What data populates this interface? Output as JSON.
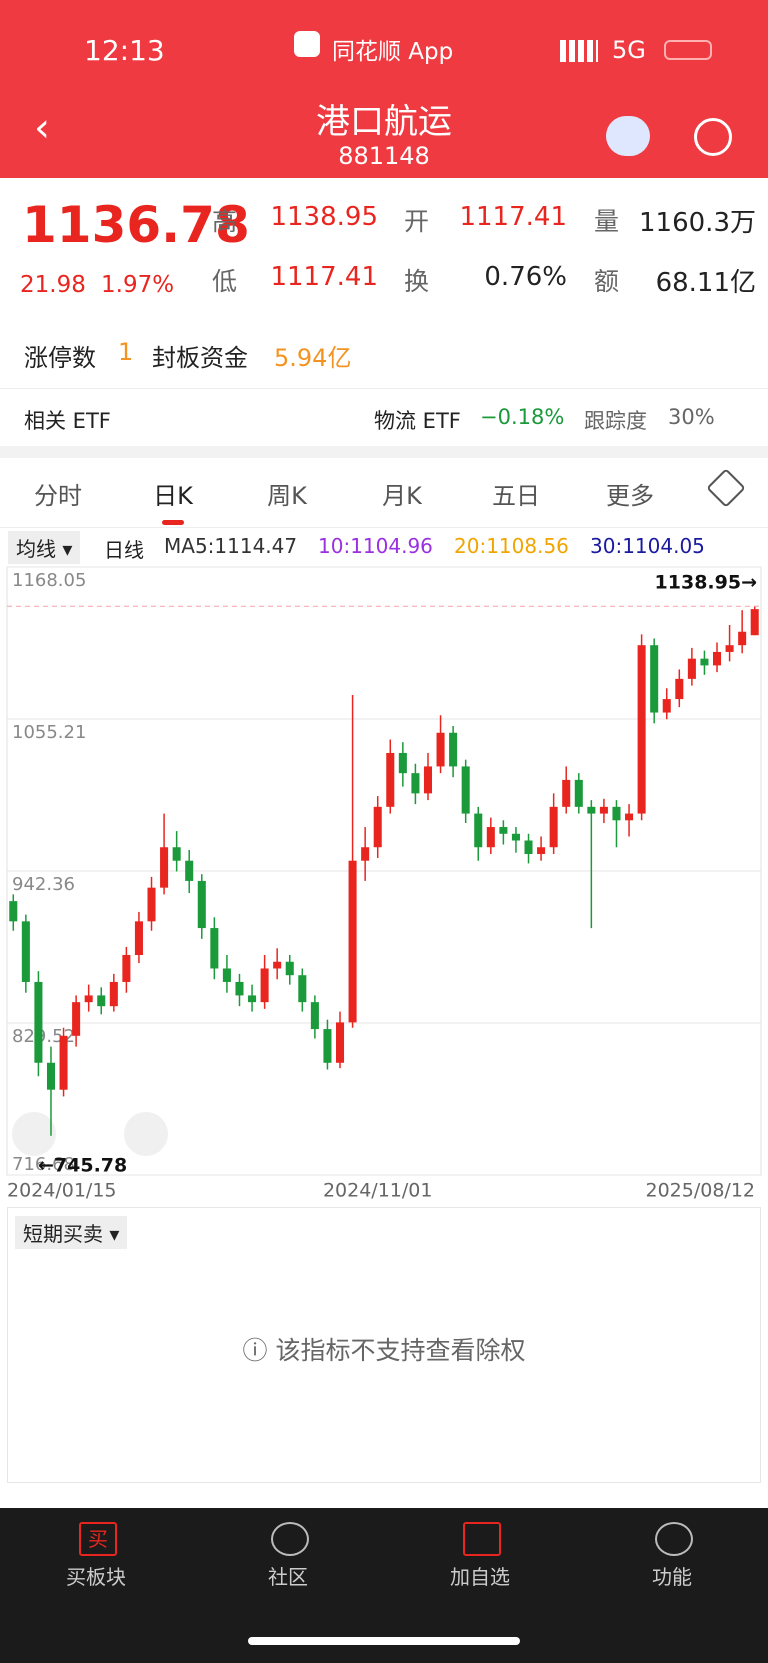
{
  "status_bar": {
    "time": "12:13",
    "app": "同花顺 App",
    "network": "5G"
  },
  "header": {
    "title": "港口航运",
    "code": "881148"
  },
  "quote": {
    "price": "1136.78",
    "change": "21.98",
    "change_pct": "1.97%",
    "fields": [
      {
        "label": "高",
        "value": "1138.95"
      },
      {
        "label": "开",
        "value": "1117.41"
      },
      {
        "label": "量",
        "value": "1160.3万"
      },
      {
        "label": "低",
        "value": "1117.41"
      },
      {
        "label": "换",
        "value": "0.76%"
      },
      {
        "label": "额",
        "value": "68.11亿"
      }
    ]
  },
  "limit": {
    "label": "涨停数",
    "count": "1",
    "fund_label": "封板资金",
    "fund": "5.94亿"
  },
  "etf": {
    "label": "相关 ETF",
    "name": "物流 ETF",
    "change": "−0.18%",
    "track_label": "跟踪度",
    "track": "30%"
  },
  "tabs": [
    "分时",
    "日K",
    "周K",
    "月K",
    "五日",
    "更多"
  ],
  "ma_legend": {
    "selector": "均线",
    "type": "日线",
    "items": [
      {
        "text": "MA5:1114.47",
        "color": "#333333"
      },
      {
        "text": "10:1104.96",
        "color": "#9b30e0"
      },
      {
        "text": "20:1108.56",
        "color": "#f0a500"
      },
      {
        "text": "30:1104.05",
        "color": "#1a1aa0"
      }
    ]
  },
  "chart_data": {
    "type": "candlestick",
    "categories": [
      "2024/01/15",
      null,
      null,
      null,
      null,
      null,
      null,
      null,
      null,
      null,
      null,
      null,
      null,
      null,
      null,
      null,
      null,
      null,
      null,
      null,
      null,
      null,
      null,
      null,
      null,
      null,
      null,
      null,
      null,
      "2024/11/01",
      null,
      null,
      null,
      null,
      null,
      null,
      null,
      null,
      null,
      null,
      null,
      null,
      null,
      null,
      null,
      null,
      null,
      null,
      null,
      null,
      null,
      null,
      null,
      null,
      null,
      null,
      null,
      null,
      null,
      "2025/08/12"
    ],
    "open": [
      920,
      905,
      860,
      800,
      780,
      820,
      845,
      850,
      842,
      860,
      880,
      905,
      930,
      960,
      950,
      935,
      900,
      870,
      860,
      850,
      845,
      870,
      875,
      865,
      845,
      825,
      800,
      830,
      950,
      960,
      990,
      1030,
      1015,
      1000,
      1020,
      1045,
      1020,
      985,
      960,
      975,
      970,
      965,
      955,
      960,
      990,
      1010,
      990,
      985,
      990,
      980,
      985,
      1110,
      1060,
      1070,
      1085,
      1100,
      1095,
      1105,
      1110,
      1117.41
    ],
    "high": [
      925,
      910,
      868,
      812,
      826,
      850,
      858,
      856,
      866,
      886,
      912,
      938,
      985,
      972,
      958,
      940,
      908,
      880,
      866,
      858,
      880,
      885,
      880,
      870,
      850,
      832,
      838,
      1073,
      975,
      998,
      1040,
      1038,
      1022,
      1030,
      1058,
      1050,
      1025,
      990,
      982,
      980,
      975,
      970,
      968,
      1000,
      1020,
      1015,
      995,
      996,
      995,
      992,
      1118,
      1115,
      1078,
      1092,
      1108,
      1106,
      1112,
      1125,
      1136,
      1138.95
    ],
    "low": [
      898,
      852,
      790,
      745.78,
      775,
      812,
      838,
      836,
      838,
      852,
      874,
      898,
      925,
      942,
      926,
      892,
      862,
      852,
      842,
      838,
      840,
      862,
      858,
      838,
      818,
      795,
      796,
      826,
      935,
      952,
      985,
      1005,
      992,
      995,
      1015,
      1012,
      978,
      950,
      955,
      962,
      956,
      948,
      950,
      955,
      985,
      985,
      900,
      978,
      960,
      968,
      980,
      1052,
      1055,
      1064,
      1080,
      1088,
      1090,
      1098,
      1104,
      1117.41
    ],
    "close": [
      905,
      860,
      800,
      780,
      820,
      845,
      850,
      842,
      860,
      880,
      905,
      930,
      960,
      950,
      935,
      900,
      870,
      860,
      850,
      845,
      870,
      875,
      865,
      845,
      825,
      800,
      830,
      950,
      960,
      990,
      1030,
      1015,
      1000,
      1020,
      1045,
      1020,
      985,
      960,
      975,
      970,
      965,
      955,
      960,
      990,
      1010,
      990,
      985,
      990,
      980,
      985,
      1110,
      1060,
      1070,
      1085,
      1100,
      1095,
      1105,
      1110,
      1120,
      1136.78
    ],
    "up_color": "#e8261f",
    "down_color": "#1a9a3a",
    "ylim": [
      716.68,
      1168.05
    ],
    "yticks": [
      1168.05,
      1055.21,
      942.36,
      829.52,
      716.68
    ],
    "grid": true,
    "annotations": [
      {
        "value": 1138.95,
        "label": "1138.95→"
      },
      {
        "value": 745.78,
        "label": "←745.78"
      }
    ]
  },
  "indicator": {
    "selector": "短期买卖",
    "message": "该指标不支持查看除权"
  },
  "bottom_nav": [
    {
      "icon": "买",
      "label": "买板块"
    },
    {
      "label": "社区"
    },
    {
      "label": "加自选"
    },
    {
      "label": "功能"
    }
  ]
}
